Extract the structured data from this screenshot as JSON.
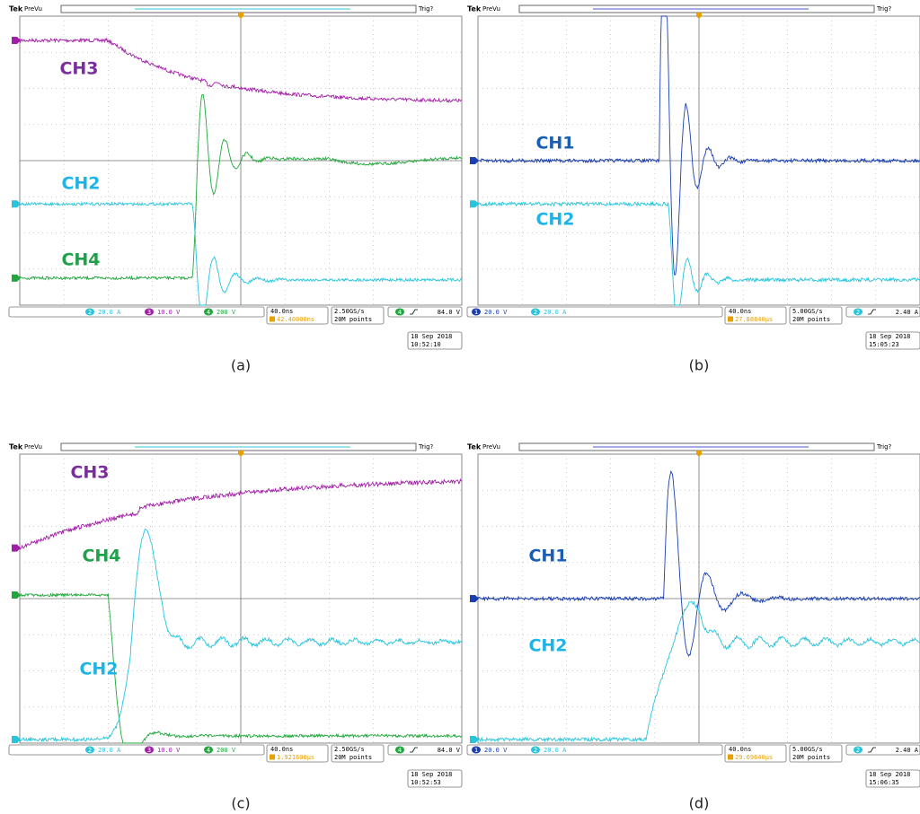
{
  "panels": [
    {
      "caption": "(a)",
      "brand": "Tek",
      "mode": "PreVu",
      "trigger_status": "Trig?",
      "labels": [
        "CH3",
        "CH2",
        "CH4"
      ],
      "readouts": [
        {
          "channel": "2",
          "value": "20.0 A"
        },
        {
          "channel": "3",
          "value": "10.0 V"
        },
        {
          "channel": "4",
          "value": "200 V"
        }
      ],
      "timebase": "40.0ns",
      "delay": "42.40000ns",
      "sample_rate": "2.50GS/s",
      "record": "20M points",
      "trigger_channel": "4",
      "trigger_level": "84.0 V",
      "date": "18 Sep  2018",
      "time": "10:52:10"
    },
    {
      "caption": "(b)",
      "brand": "Tek",
      "mode": "PreVu",
      "trigger_status": "Trig?",
      "labels": [
        "CH1",
        "CH2"
      ],
      "readouts": [
        {
          "channel": "1",
          "value": "20.0 V"
        },
        {
          "channel": "2",
          "value": "20.0 A"
        }
      ],
      "timebase": "40.0ns",
      "delay": "27.88840µs",
      "sample_rate": "5.00GS/s",
      "record": "20M points",
      "trigger_channel": "2",
      "trigger_level": "2.40 A",
      "date": "18 Sep  2018",
      "time": "15:05:23"
    },
    {
      "caption": "(c)",
      "brand": "Tek",
      "mode": "PreVu",
      "trigger_status": "Trig?",
      "labels": [
        "CH3",
        "CH4",
        "CH2"
      ],
      "readouts": [
        {
          "channel": "2",
          "value": "20.0 A"
        },
        {
          "channel": "3",
          "value": "10.0 V"
        },
        {
          "channel": "4",
          "value": "200 V"
        }
      ],
      "timebase": "40.0ns",
      "delay": "1.921600µs",
      "sample_rate": "2.50GS/s",
      "record": "20M points",
      "trigger_channel": "4",
      "trigger_level": "84.0 V",
      "date": "18 Sep  2018",
      "time": "10:52:53"
    },
    {
      "caption": "(d)",
      "brand": "Tek",
      "mode": "PreVu",
      "trigger_status": "Trig?",
      "labels": [
        "CH1",
        "CH2"
      ],
      "readouts": [
        {
          "channel": "1",
          "value": "20.0 V"
        },
        {
          "channel": "2",
          "value": "20.0 A"
        }
      ],
      "timebase": "40.0ns",
      "delay": "29.69640µs",
      "sample_rate": "5.00GS/s",
      "record": "20M points",
      "trigger_channel": "2",
      "trigger_level": "2.40 A",
      "date": "18 Sep  2018",
      "time": "15:06:35"
    }
  ]
}
